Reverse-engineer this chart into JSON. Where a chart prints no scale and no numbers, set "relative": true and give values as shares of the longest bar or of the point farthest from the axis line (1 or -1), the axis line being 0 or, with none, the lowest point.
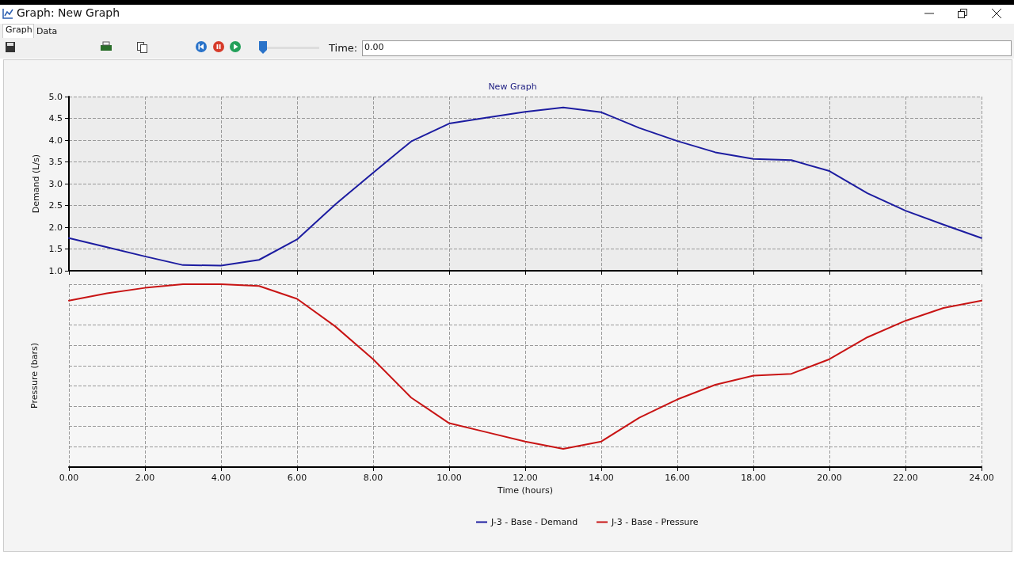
{
  "chart_data": [
    {
      "type": "line",
      "title": "New Graph",
      "ylabel": "Demand (L/s)",
      "x": [
        0,
        1,
        2,
        3,
        4,
        5,
        6,
        7,
        8,
        9,
        10,
        11,
        12,
        13,
        14,
        15,
        16,
        17,
        18,
        19,
        20,
        21,
        22,
        23,
        24
      ],
      "series": [
        {
          "name": "J-3 - Base - Demand",
          "color": "#1c1ca0",
          "values": [
            1.75,
            1.54,
            1.33,
            1.13,
            1.12,
            1.25,
            1.72,
            2.52,
            3.25,
            3.97,
            4.38,
            4.52,
            4.65,
            4.75,
            4.64,
            4.28,
            3.98,
            3.72,
            3.57,
            3.54,
            3.29,
            2.78,
            2.38,
            2.06,
            1.75
          ]
        }
      ],
      "xlim": [
        0,
        24
      ],
      "xticks": [
        0,
        2,
        4,
        6,
        8,
        10,
        12,
        14,
        16,
        18,
        20,
        22,
        24
      ],
      "ylim": [
        1,
        5
      ],
      "yticks": [
        {
          "value": 1,
          "label": "1.0"
        },
        {
          "value": 1.5,
          "label": "1.5"
        },
        {
          "value": 2,
          "label": "2.0"
        },
        {
          "value": 2.5,
          "label": "2.5"
        },
        {
          "value": 3,
          "label": "3.0"
        },
        {
          "value": 3.5,
          "label": "3.5"
        },
        {
          "value": 4,
          "label": "4.0"
        },
        {
          "value": 4.5,
          "label": "4.5"
        },
        {
          "value": 5,
          "label": "5.0"
        }
      ],
      "tick_labels": "y",
      "grid": true,
      "legend": "bottom",
      "marker": "none",
      "line_style": "solid",
      "annotations": [
        "Graph: New Graph",
        "Graph",
        "Data",
        "Time:",
        "0.00"
      ]
    },
    {
      "type": "line",
      "ylabel": "Pressure (bars)",
      "xlabel": "Time (hours)",
      "relative": true,
      "x": [
        0,
        1,
        2,
        3,
        4,
        5,
        6,
        7,
        8,
        9,
        10,
        11,
        12,
        13,
        14,
        15,
        16,
        17,
        18,
        19,
        20,
        21,
        22,
        23,
        24
      ],
      "series": [
        {
          "name": "J-3 - Base - Pressure",
          "color": "#c81414",
          "values": [
            0.91,
            0.95,
            0.98,
            1,
            1,
            0.99,
            0.92,
            0.77,
            0.59,
            0.38,
            0.24,
            0.19,
            0.14,
            0.1,
            0.14,
            0.27,
            0.37,
            0.45,
            0.5,
            0.51,
            0.59,
            0.71,
            0.8,
            0.87,
            0.91
          ]
        }
      ],
      "xlim": [
        0,
        24
      ],
      "xticks": [
        {
          "value": 0,
          "label": "0.00"
        },
        {
          "value": 2,
          "label": "2.00"
        },
        {
          "value": 4,
          "label": "4.00"
        },
        {
          "value": 6,
          "label": "6.00"
        },
        {
          "value": 8,
          "label": "8.00"
        },
        {
          "value": 10,
          "label": "10.00"
        },
        {
          "value": 12,
          "label": "12.00"
        },
        {
          "value": 14,
          "label": "14.00"
        },
        {
          "value": 16,
          "label": "16.00"
        },
        {
          "value": 18,
          "label": "18.00"
        },
        {
          "value": 20,
          "label": "20.00"
        },
        {
          "value": 22,
          "label": "22.00"
        },
        {
          "value": 24,
          "label": "24.00"
        }
      ],
      "grid": true,
      "legend": "bottom",
      "marker": "none",
      "line_style": "solid"
    }
  ]
}
